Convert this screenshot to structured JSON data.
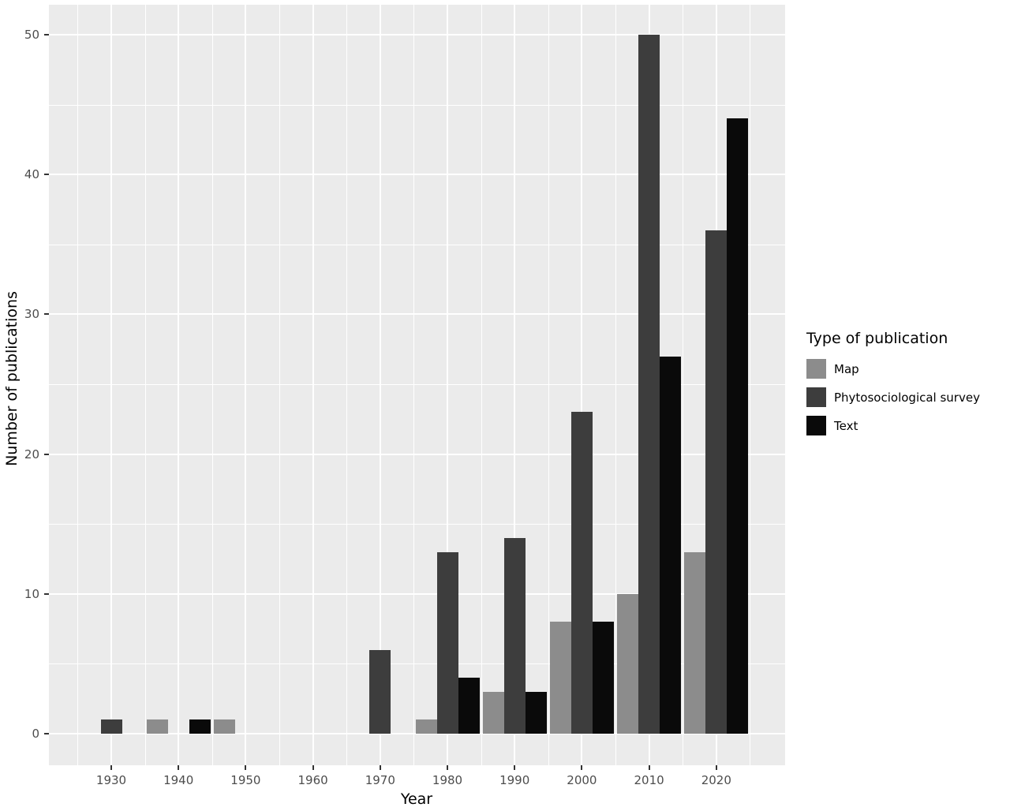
{
  "figure": {
    "background": "#FFFFFF",
    "panel_background": "#EBEBEB",
    "grid_color": "#FFFFFF",
    "tick_mark_color": "#333333",
    "axis_text_color": "#4D4D4D",
    "axis_title_color": "#000000"
  },
  "legend": {
    "title": "Type of publication",
    "items": [
      {
        "label": "Map",
        "color": "#8C8C8C"
      },
      {
        "label": "Phytosociological survey",
        "color": "#3D3D3D"
      },
      {
        "label": "Text",
        "color": "#0A0A0A"
      }
    ]
  },
  "chart_data": {
    "type": "bar",
    "title": "",
    "xlabel": "Year",
    "ylabel": "Number of publications",
    "categories": [
      1930,
      1940,
      1950,
      1960,
      1970,
      1980,
      1990,
      2000,
      2010,
      2020
    ],
    "series": [
      {
        "name": "Map",
        "color": "#8C8C8C",
        "values": [
          0,
          1,
          1,
          0,
          0,
          1,
          3,
          8,
          10,
          13
        ]
      },
      {
        "name": "Phytosociological survey",
        "color": "#3D3D3D",
        "values": [
          1,
          0,
          0,
          0,
          6,
          13,
          14,
          23,
          50,
          36
        ]
      },
      {
        "name": "Text",
        "color": "#0A0A0A",
        "values": [
          0,
          1,
          0,
          0,
          0,
          4,
          3,
          8,
          27,
          44
        ]
      }
    ],
    "ylim": [
      0,
      50
    ],
    "yticks": [
      0,
      10,
      20,
      30,
      40,
      50
    ],
    "grid": true,
    "bar_mode": "grouped",
    "legend_position": "right"
  }
}
